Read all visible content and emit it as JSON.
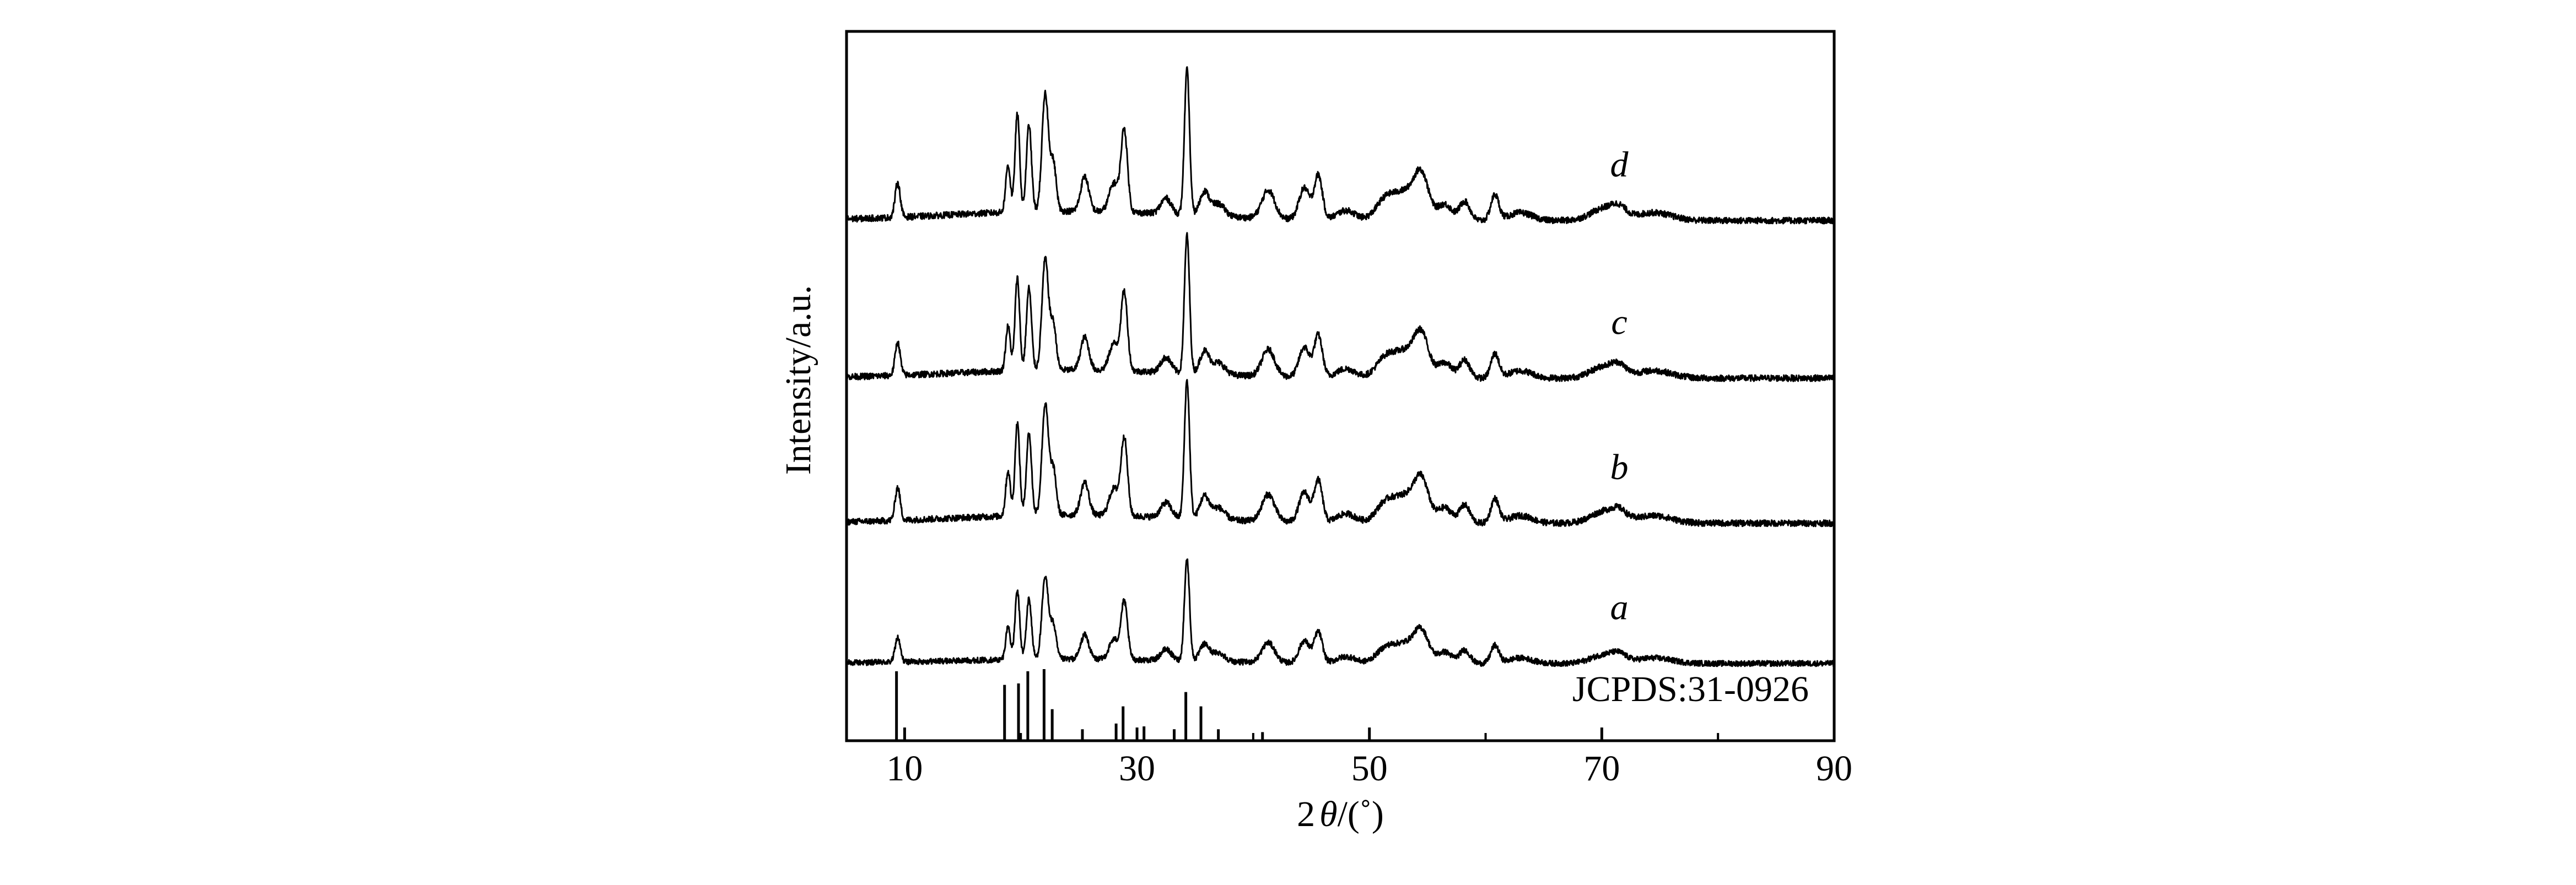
{
  "chart_data": {
    "type": "line",
    "title": "",
    "xlabel_main": "2",
    "xlabel_symbol": "θ",
    "xlabel_unit": "/(˚)",
    "ylabel": "Intensity/a.u.",
    "xlim": [
      5,
      90
    ],
    "xticks": [
      10,
      30,
      50,
      70,
      90
    ],
    "grid": false,
    "legend": "none",
    "reference_label": "JCPDS:31-0926",
    "reference_lines": [
      {
        "x": 9.3,
        "h": 0.97
      },
      {
        "x": 18.6,
        "h": 0.78
      },
      {
        "x": 19.8,
        "h": 0.8
      },
      {
        "x": 20.6,
        "h": 0.97
      },
      {
        "x": 22.0,
        "h": 1.0
      },
      {
        "x": 22.7,
        "h": 0.44
      },
      {
        "x": 25.3,
        "h": 0.16
      },
      {
        "x": 28.2,
        "h": 0.24
      },
      {
        "x": 28.8,
        "h": 0.48
      },
      {
        "x": 30.6,
        "h": 0.2
      },
      {
        "x": 33.2,
        "h": 0.16
      },
      {
        "x": 34.2,
        "h": 0.68
      },
      {
        "x": 35.5,
        "h": 0.48
      },
      {
        "x": 37.0,
        "h": 0.16
      },
      {
        "x": 40.8,
        "h": 0.12
      }
    ],
    "peaks": [
      {
        "x": 9.4,
        "h": 0.22,
        "w": 0.22
      },
      {
        "x": 18.9,
        "h": 0.3,
        "w": 0.2
      },
      {
        "x": 19.7,
        "h": 0.62,
        "w": 0.2
      },
      {
        "x": 20.7,
        "h": 0.55,
        "w": 0.22
      },
      {
        "x": 22.1,
        "h": 0.74,
        "w": 0.28
      },
      {
        "x": 22.8,
        "h": 0.3,
        "w": 0.25
      },
      {
        "x": 25.5,
        "h": 0.22,
        "w": 0.35
      },
      {
        "x": 28.0,
        "h": 0.18,
        "w": 0.4
      },
      {
        "x": 28.9,
        "h": 0.52,
        "w": 0.28
      },
      {
        "x": 32.5,
        "h": 0.1,
        "w": 0.45
      },
      {
        "x": 34.3,
        "h": 0.92,
        "w": 0.22
      },
      {
        "x": 35.8,
        "h": 0.15,
        "w": 0.4
      },
      {
        "x": 37.0,
        "h": 0.08,
        "w": 0.55
      },
      {
        "x": 41.3,
        "h": 0.18,
        "w": 0.55
      },
      {
        "x": 44.4,
        "h": 0.2,
        "w": 0.45
      },
      {
        "x": 45.6,
        "h": 0.28,
        "w": 0.35
      },
      {
        "x": 48.0,
        "h": 0.06,
        "w": 0.8
      },
      {
        "x": 51.3,
        "h": 0.1,
        "w": 0.8
      },
      {
        "x": 53.2,
        "h": 0.18,
        "w": 1.2
      },
      {
        "x": 54.5,
        "h": 0.22,
        "w": 0.6
      },
      {
        "x": 56.5,
        "h": 0.1,
        "w": 0.6
      },
      {
        "x": 58.2,
        "h": 0.12,
        "w": 0.45
      },
      {
        "x": 60.8,
        "h": 0.16,
        "w": 0.35
      },
      {
        "x": 63.0,
        "h": 0.05,
        "w": 1.0
      },
      {
        "x": 70.3,
        "h": 0.08,
        "w": 1.2
      },
      {
        "x": 71.5,
        "h": 0.05,
        "w": 0.6
      },
      {
        "x": 74.5,
        "h": 0.05,
        "w": 1.5
      }
    ],
    "series": [
      {
        "name": "a",
        "baseline": 0.49,
        "scale": 0.7,
        "noise": 0.018,
        "amorphous": 0.04,
        "label_x": 71.5
      },
      {
        "name": "b",
        "baseline": 1.38,
        "scale": 0.95,
        "noise": 0.02,
        "amorphous": 0.055,
        "label_x": 71.5
      },
      {
        "name": "c",
        "baseline": 2.3,
        "scale": 0.95,
        "noise": 0.02,
        "amorphous": 0.055,
        "label_x": 71.5
      },
      {
        "name": "d",
        "baseline": 3.3,
        "scale": 1.0,
        "noise": 0.02,
        "amorphous": 0.06,
        "label_x": 71.5
      }
    ]
  }
}
